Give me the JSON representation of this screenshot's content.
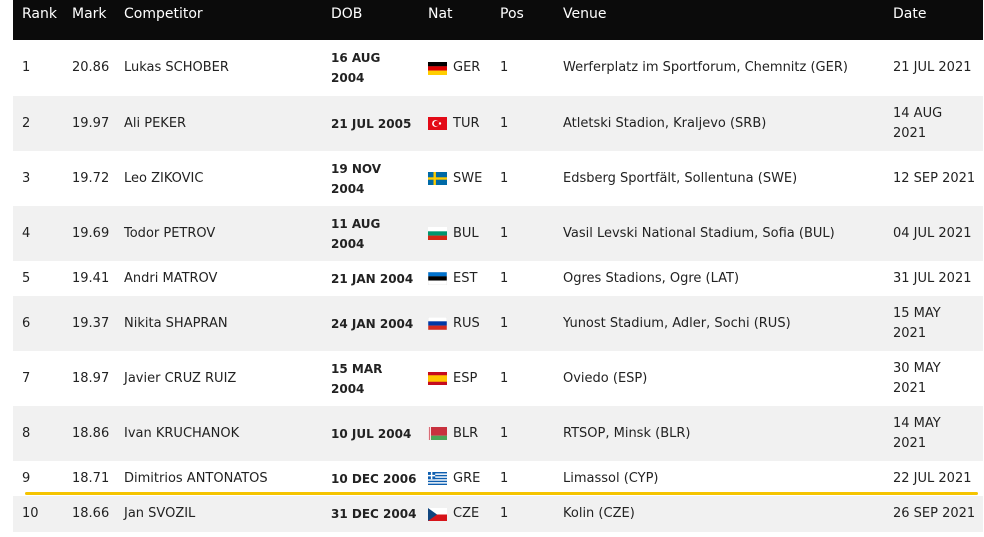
{
  "table": {
    "headers": [
      "Rank",
      "Mark",
      "Competitor",
      "DOB",
      "Nat",
      "Pos",
      "Venue",
      "Date"
    ],
    "rows": [
      [
        1,
        20.86,
        "Lukas SCHOBER",
        "16 AUG 2004",
        "GER",
        1,
        "Werferplatz im Sportforum, Chemnitz (GER)",
        "21 JUL 2021"
      ],
      [
        2,
        19.97,
        "Ali PEKER",
        "21 JUL 2005",
        "TUR",
        1,
        "Atletski Stadion, Kraljevo (SRB)",
        "14 AUG 2021"
      ],
      [
        3,
        19.72,
        "Leo ZIKOVIC",
        "19 NOV 2004",
        "SWE",
        1,
        "Edsberg Sportfält, Sollentuna (SWE)",
        "12 SEP 2021"
      ],
      [
        4,
        19.69,
        "Todor PETROV",
        "11 AUG 2004",
        "BUL",
        1,
        "Vasil Levski National Stadium, Sofia (BUL)",
        "04 JUL 2021"
      ],
      [
        5,
        19.41,
        "Andri MATROV",
        "21 JAN 2004",
        "EST",
        1,
        "Ogres Stadions, Ogre (LAT)",
        "31 JUL 2021"
      ],
      [
        6,
        19.37,
        "Nikita SHAPRAN",
        "24 JAN 2004",
        "RUS",
        1,
        "Yunost Stadium, Adler, Sochi (RUS)",
        "15 MAY 2021"
      ],
      [
        7,
        18.97,
        "Javier CRUZ RUIZ",
        "15 MAR 2004",
        "ESP",
        1,
        "Oviedo (ESP)",
        "30 MAY 2021"
      ],
      [
        8,
        18.86,
        "Ivan KRUCHANOK",
        "10 JUL 2004",
        "BLR",
        1,
        "RTSOP, Minsk (BLR)",
        "14 MAY 2021"
      ],
      [
        9,
        18.71,
        "Dimitrios ANTONATOS",
        "10 DEC 2006",
        "GRE",
        1,
        "Limassol (CYP)",
        "22 JUL 2021"
      ],
      [
        10,
        18.66,
        "Jan SVOZIL",
        "31 DEC 2004",
        "CZE",
        1,
        "Kolin (CZE)",
        "26 SEP 2021"
      ]
    ]
  }
}
